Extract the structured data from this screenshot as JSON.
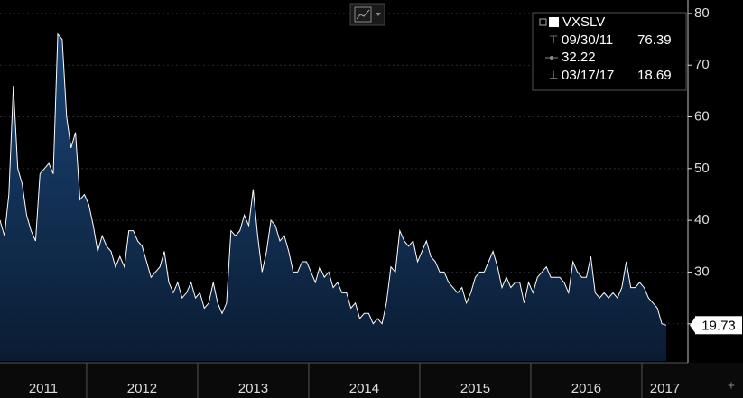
{
  "chart_data": {
    "type": "area",
    "x": [
      2011.22,
      2011.26,
      2011.3,
      2011.34,
      2011.38,
      2011.42,
      2011.46,
      2011.5,
      2011.54,
      2011.58,
      2011.62,
      2011.66,
      2011.7,
      2011.74,
      2011.78,
      2011.82,
      2011.86,
      2011.9,
      2011.94,
      2011.98,
      2012.02,
      2012.06,
      2012.1,
      2012.14,
      2012.18,
      2012.22,
      2012.26,
      2012.3,
      2012.34,
      2012.38,
      2012.42,
      2012.46,
      2012.5,
      2012.54,
      2012.58,
      2012.62,
      2012.66,
      2012.7,
      2012.74,
      2012.78,
      2012.82,
      2012.86,
      2012.9,
      2012.94,
      2012.98,
      2013.02,
      2013.06,
      2013.1,
      2013.14,
      2013.18,
      2013.22,
      2013.26,
      2013.3,
      2013.34,
      2013.38,
      2013.42,
      2013.46,
      2013.5,
      2013.54,
      2013.58,
      2013.62,
      2013.66,
      2013.7,
      2013.74,
      2013.78,
      2013.82,
      2013.86,
      2013.9,
      2013.94,
      2013.98,
      2014.02,
      2014.06,
      2014.1,
      2014.14,
      2014.18,
      2014.22,
      2014.26,
      2014.3,
      2014.34,
      2014.38,
      2014.42,
      2014.46,
      2014.5,
      2014.54,
      2014.58,
      2014.62,
      2014.66,
      2014.7,
      2014.74,
      2014.78,
      2014.82,
      2014.86,
      2014.9,
      2014.94,
      2014.98,
      2015.02,
      2015.06,
      2015.1,
      2015.14,
      2015.18,
      2015.22,
      2015.26,
      2015.3,
      2015.34,
      2015.38,
      2015.42,
      2015.46,
      2015.5,
      2015.54,
      2015.58,
      2015.62,
      2015.66,
      2015.7,
      2015.74,
      2015.78,
      2015.82,
      2015.86,
      2015.9,
      2015.94,
      2015.98,
      2016.02,
      2016.06,
      2016.1,
      2016.14,
      2016.18,
      2016.22,
      2016.26,
      2016.3,
      2016.34,
      2016.38,
      2016.42,
      2016.46,
      2016.5,
      2016.54,
      2016.58,
      2016.62,
      2016.66,
      2016.7,
      2016.74,
      2016.78,
      2016.82,
      2016.86,
      2016.9,
      2016.94,
      2016.98,
      2017.02,
      2017.06,
      2017.1,
      2017.14,
      2017.18,
      2017.22
    ],
    "series": [
      {
        "name": "VXSLV",
        "color": "#ffffff",
        "values": [
          40,
          37,
          45,
          66,
          50,
          47,
          41,
          38,
          36,
          49,
          50,
          51,
          49,
          76,
          75,
          60,
          54,
          57,
          44,
          45,
          43,
          39,
          34,
          37,
          35,
          34,
          31,
          33,
          31,
          38,
          38,
          36,
          35,
          32,
          29,
          30,
          31,
          34,
          28,
          26,
          28,
          25,
          26,
          28,
          25,
          26,
          23,
          24,
          28,
          24,
          22,
          24,
          38,
          37,
          38,
          41,
          39,
          46,
          37,
          30,
          34,
          40,
          39,
          36,
          37,
          34,
          30,
          30,
          32,
          32,
          30,
          28,
          31,
          29,
          30,
          27,
          28,
          26,
          26,
          23,
          24,
          21,
          22,
          22,
          20,
          21,
          20,
          24,
          31,
          30,
          38,
          36,
          35,
          36,
          32,
          34,
          36,
          33,
          32,
          30,
          30,
          28,
          27,
          26,
          27,
          24,
          26,
          29,
          30,
          30,
          32,
          34,
          31,
          27,
          29,
          27,
          28,
          28,
          24,
          28,
          26,
          29,
          30,
          31,
          29,
          29,
          29,
          28,
          26,
          32,
          30,
          29,
          29,
          33,
          26,
          25,
          26,
          25,
          26,
          25,
          27,
          32,
          27,
          27,
          28,
          27,
          25,
          24,
          23,
          20,
          19.73
        ]
      }
    ],
    "high": {
      "date": "09/30/11",
      "value": 76.39
    },
    "average": 32.22,
    "low": {
      "date": "03/17/17",
      "value": 18.69
    },
    "xlim": [
      2011.22,
      2017.415
    ],
    "xticks": [
      2011,
      2012,
      2013,
      2014,
      2015,
      2016,
      2017
    ],
    "ylim": [
      12.8,
      82.6
    ],
    "yticks": [
      20,
      30,
      40,
      50,
      60,
      70,
      80
    ],
    "grid": true
  }
}
